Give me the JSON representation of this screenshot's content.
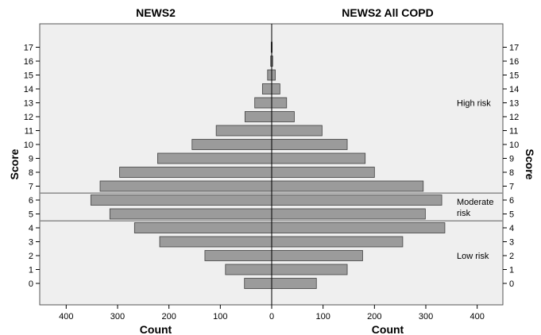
{
  "chart_data": {
    "type": "bar",
    "orientation": "horizontal",
    "layout": "population-pyramid",
    "grid": false,
    "y": {
      "label": "Score",
      "categories": [
        "0",
        "1",
        "2",
        "3",
        "4",
        "5",
        "6",
        "7",
        "8",
        "9",
        "10",
        "11",
        "12",
        "13",
        "14",
        "15",
        "16",
        "17"
      ]
    },
    "x": {
      "label": "Count",
      "range": [
        0,
        450
      ],
      "ticks": [
        0,
        100,
        200,
        300,
        400
      ]
    },
    "series": [
      {
        "name": "NEWS2",
        "side": "left",
        "values": [
          53,
          90,
          130,
          218,
          267,
          315,
          352,
          334,
          296,
          222,
          155,
          108,
          52,
          33,
          18,
          8,
          2,
          1
        ]
      },
      {
        "name": "NEWS2 All COPD",
        "side": "right",
        "values": [
          87,
          147,
          177,
          255,
          337,
          299,
          331,
          295,
          200,
          182,
          147,
          98,
          44,
          29,
          16,
          7,
          2,
          1
        ]
      }
    ],
    "thresholds": [
      {
        "between": [
          4,
          5
        ]
      },
      {
        "between": [
          6,
          7
        ]
      }
    ],
    "regions": [
      {
        "lines": [
          "High risk"
        ],
        "score": 13
      },
      {
        "lines": [
          "Moderate",
          "risk"
        ],
        "score": 5.5
      },
      {
        "lines": [
          "Low risk"
        ],
        "score": 2
      }
    ],
    "colors": {
      "bar_fill": "#9b9b9b",
      "bar_stroke": "#404040",
      "plot_background": "#efefef",
      "threshold_line": "#8c8c8c"
    }
  }
}
